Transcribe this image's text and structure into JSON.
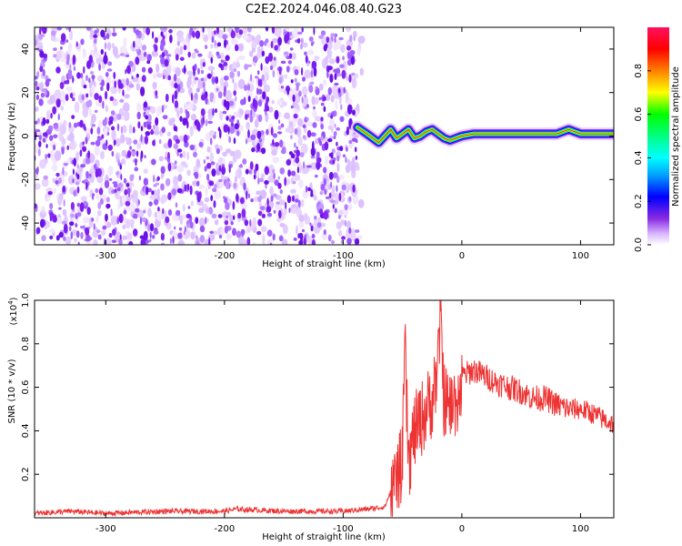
{
  "title": "C2E2.2024.046.08.40.G23",
  "chart_data": [
    {
      "type": "heatmap",
      "xlabel": "Height of straight line (km)",
      "ylabel": "Frequency (Hz)",
      "xlim": [
        -360,
        128
      ],
      "ylim": [
        -50,
        50
      ],
      "xticks": [
        "-300",
        "-200",
        "-100",
        "0",
        "100"
      ],
      "xtick_values": [
        -300,
        -200,
        -100,
        0,
        100
      ],
      "yticks": [
        "40",
        "20",
        "0",
        "-20",
        "-40"
      ],
      "ytick_values": [
        40,
        20,
        0,
        -20,
        -40
      ],
      "colorbar": {
        "label": "Normalized spectral amplitude",
        "ticks": [
          "0.0",
          "0.2",
          "0.4",
          "0.6",
          "0.8"
        ],
        "tick_values": [
          0.0,
          0.2,
          0.4,
          0.6,
          0.8
        ],
        "range": [
          0,
          1
        ]
      },
      "regions": [
        {
          "x_from": -360,
          "x_to": -88,
          "freq_from": -50,
          "freq_to": 50,
          "amplitude": "low, broadband noise"
        },
        {
          "x_from": -88,
          "x_to": 128,
          "freq_center": 1,
          "freq_halfwidth": 3,
          "amplitude": "high, narrow carrier line"
        }
      ],
      "carrier_trace": {
        "x": [
          -88,
          -80,
          -75,
          -70,
          -65,
          -60,
          -55,
          -50,
          -45,
          -40,
          -35,
          -30,
          -25,
          -20,
          -15,
          -10,
          -5,
          0,
          10,
          20,
          40,
          60,
          80,
          90,
          100,
          110,
          128
        ],
        "freq": [
          4,
          1,
          -1,
          -3,
          0,
          3,
          -1,
          1,
          3,
          -1,
          0,
          2,
          3,
          1,
          -1,
          -2,
          -1,
          0,
          1,
          1,
          1,
          1,
          1,
          3,
          1,
          1,
          1
        ]
      }
    },
    {
      "type": "line",
      "xlabel": "Height of straight line (km)",
      "ylabel": "SNR (10 * v/v)",
      "y_multiplier": "(x10",
      "y_multiplier_exp": "4",
      "y_multiplier_close": ")",
      "xlim": [
        -360,
        128
      ],
      "ylim": [
        0,
        1.0
      ],
      "xticks": [
        "-300",
        "-200",
        "-100",
        "0",
        "100"
      ],
      "xtick_values": [
        -300,
        -200,
        -100,
        0,
        100
      ],
      "yticks": [
        "0.2",
        "0.4",
        "0.6",
        "0.8",
        "1.0"
      ],
      "ytick_values": [
        0.2,
        0.4,
        0.6,
        0.8,
        1.0
      ],
      "series": [
        {
          "color": "#ee3333",
          "x": [
            -360,
            -330,
            -300,
            -250,
            -200,
            -190,
            -150,
            -100,
            -80,
            -65,
            -60,
            -55,
            -50,
            -48,
            -45,
            -40,
            -35,
            -30,
            -25,
            -20,
            -18,
            -15,
            -10,
            -5,
            0,
            10,
            20,
            30,
            40,
            50,
            60,
            70,
            80,
            90,
            100,
            110,
            120,
            128
          ],
          "y": [
            0.02,
            0.03,
            0.02,
            0.03,
            0.03,
            0.04,
            0.03,
            0.03,
            0.04,
            0.05,
            0.12,
            0.25,
            0.3,
            0.85,
            0.3,
            0.45,
            0.5,
            0.55,
            0.6,
            0.75,
            1.0,
            0.6,
            0.55,
            0.6,
            0.65,
            0.68,
            0.65,
            0.62,
            0.6,
            0.58,
            0.55,
            0.55,
            0.52,
            0.5,
            0.5,
            0.48,
            0.45,
            0.43
          ]
        }
      ]
    }
  ]
}
